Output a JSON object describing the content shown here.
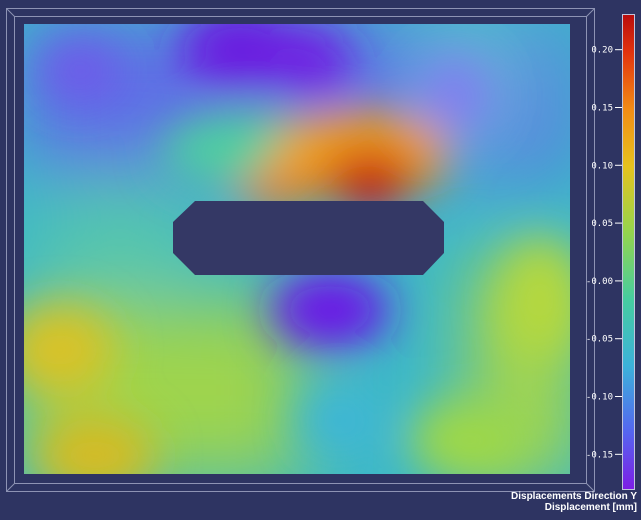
{
  "colormap": {
    "stops": [
      "#7d1ee6",
      "#5565f0",
      "#3cb2da",
      "#46cca0",
      "#93d44e",
      "#e6c21e",
      "#f28c16",
      "#e2330e",
      "#b80c0c"
    ],
    "range": [
      -0.18,
      0.23
    ],
    "ticks": [
      "0.20",
      "0.15",
      "0.10",
      "0.05",
      "-0.00",
      "-0.05",
      "-0.10",
      "-0.15"
    ],
    "tick_values": [
      0.2,
      0.15,
      0.1,
      0.05,
      0.0,
      -0.05,
      -0.1,
      -0.15
    ]
  },
  "colors": {
    "background": "#2e3462",
    "hole": "#343865",
    "frame": "#8e93b4"
  },
  "caption": {
    "title": "Displacements Direction Y",
    "unit": "Displacement [mm]"
  }
}
